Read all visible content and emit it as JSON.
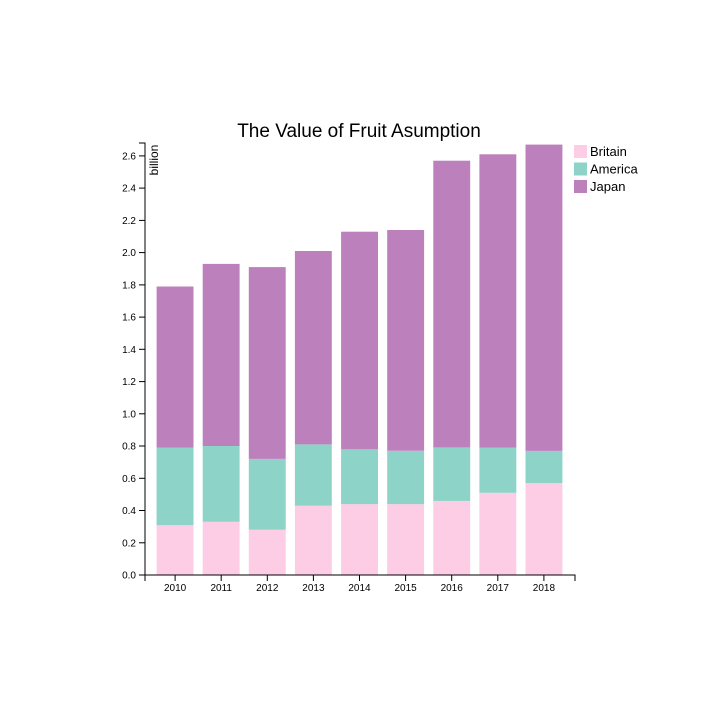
{
  "chart_data": {
    "type": "bar",
    "stacked": true,
    "title": "The Value of Fruit Asumption",
    "xlabel": "",
    "ylabel": "billion",
    "categories": [
      "2010",
      "2011",
      "2012",
      "2013",
      "2014",
      "2015",
      "2016",
      "2017",
      "2018"
    ],
    "ylim": [
      0,
      2.68
    ],
    "yticks": [
      "0.0",
      "0.2",
      "0.4",
      "0.6",
      "0.8",
      "1.0",
      "1.2",
      "1.4",
      "1.6",
      "1.8",
      "2.0",
      "2.2",
      "2.4",
      "2.6"
    ],
    "grid": false,
    "legend_position": "top-right",
    "series": [
      {
        "name": "Britain",
        "color": "#fccde5",
        "values": [
          0.31,
          0.33,
          0.28,
          0.43,
          0.44,
          0.44,
          0.46,
          0.51,
          0.57
        ]
      },
      {
        "name": "America",
        "color": "#8dd3c7",
        "values": [
          0.48,
          0.47,
          0.44,
          0.38,
          0.34,
          0.33,
          0.33,
          0.28,
          0.2
        ]
      },
      {
        "name": "Japan",
        "color": "#bc80bd",
        "values": [
          1.0,
          1.13,
          1.19,
          1.2,
          1.35,
          1.37,
          1.78,
          1.82,
          1.9
        ]
      }
    ]
  }
}
